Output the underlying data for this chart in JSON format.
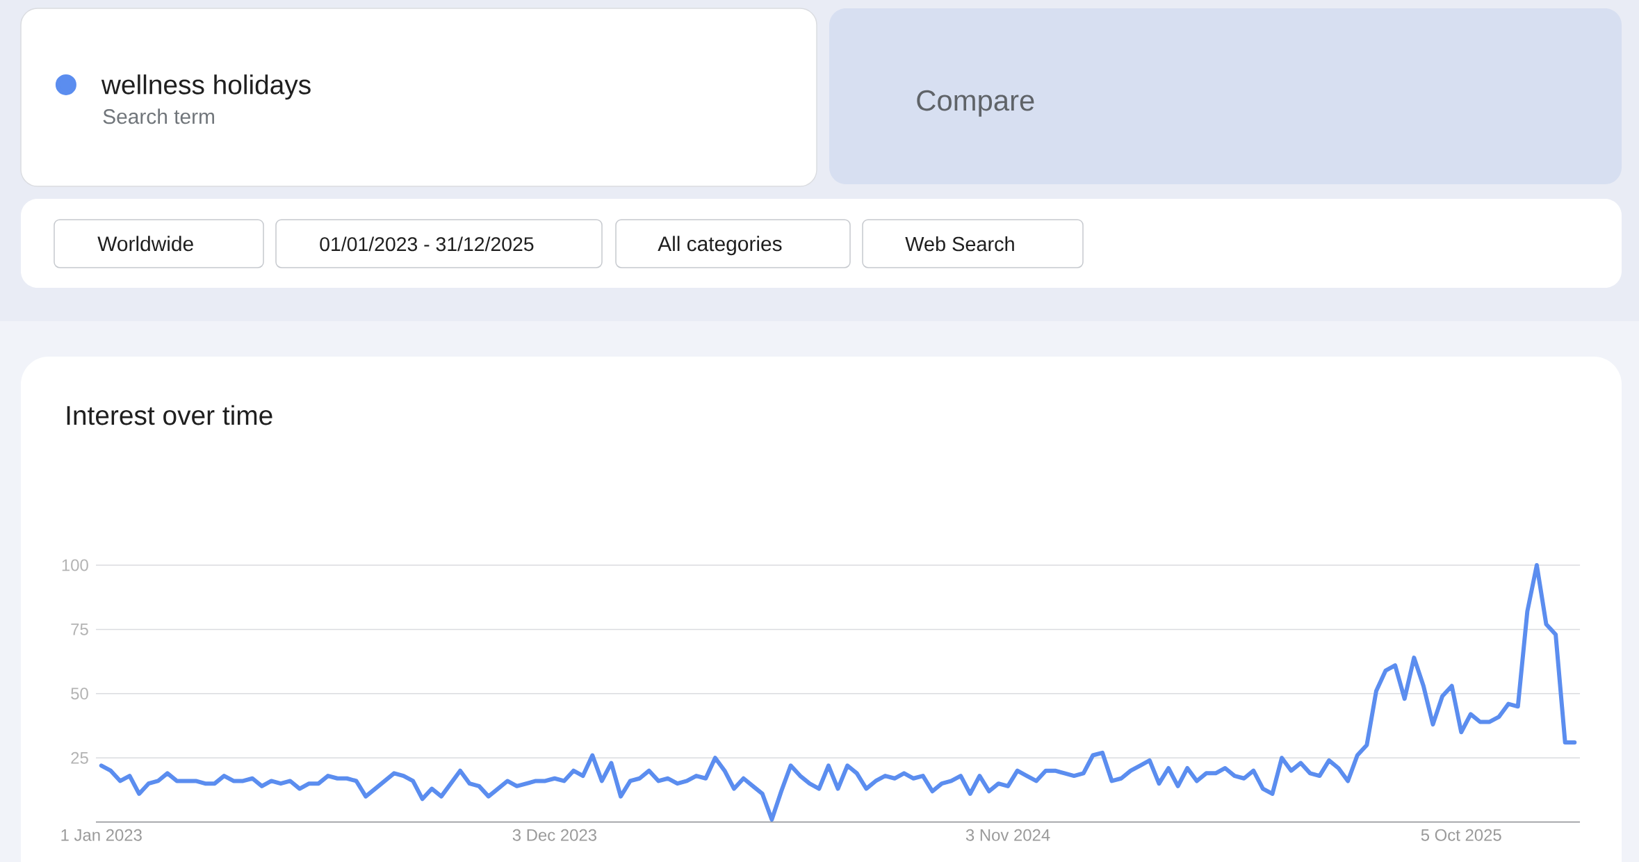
{
  "chart_data": {
    "type": "line",
    "title": "Interest over time",
    "annotations": [
      "Search term",
      "Compare",
      "Worldwide",
      "01/01/2023 - 31/12/2025",
      "All categories",
      "Web Search"
    ],
    "x": [
      "2023-01-01",
      "2023-01-08",
      "2023-01-15",
      "2023-01-22",
      "2023-01-29",
      "2023-02-05",
      "2023-02-12",
      "2023-02-19",
      "2023-02-26",
      "2023-03-05",
      "2023-03-12",
      "2023-03-19",
      "2023-03-26",
      "2023-04-02",
      "2023-04-09",
      "2023-04-16",
      "2023-04-23",
      "2023-04-30",
      "2023-05-07",
      "2023-05-14",
      "2023-05-21",
      "2023-05-28",
      "2023-06-04",
      "2023-06-11",
      "2023-06-18",
      "2023-06-25",
      "2023-07-02",
      "2023-07-09",
      "2023-07-16",
      "2023-07-23",
      "2023-07-30",
      "2023-08-06",
      "2023-08-13",
      "2023-08-20",
      "2023-08-27",
      "2023-09-03",
      "2023-09-10",
      "2023-09-17",
      "2023-09-24",
      "2023-10-01",
      "2023-10-08",
      "2023-10-15",
      "2023-10-22",
      "2023-10-29",
      "2023-11-05",
      "2023-11-12",
      "2023-11-19",
      "2023-11-26",
      "2023-12-03",
      "2023-12-10",
      "2023-12-17",
      "2023-12-24",
      "2023-12-31",
      "2024-01-07",
      "2024-01-14",
      "2024-01-21",
      "2024-01-28",
      "2024-02-04",
      "2024-02-11",
      "2024-02-18",
      "2024-02-25",
      "2024-03-03",
      "2024-03-10",
      "2024-03-17",
      "2024-03-24",
      "2024-03-31",
      "2024-04-07",
      "2024-04-14",
      "2024-04-21",
      "2024-04-28",
      "2024-05-05",
      "2024-05-12",
      "2024-05-19",
      "2024-05-26",
      "2024-06-02",
      "2024-06-09",
      "2024-06-16",
      "2024-06-23",
      "2024-06-30",
      "2024-07-07",
      "2024-07-14",
      "2024-07-21",
      "2024-07-28",
      "2024-08-04",
      "2024-08-11",
      "2024-08-18",
      "2024-08-25",
      "2024-09-01",
      "2024-09-08",
      "2024-09-15",
      "2024-09-22",
      "2024-09-29",
      "2024-10-06",
      "2024-10-13",
      "2024-10-20",
      "2024-10-27",
      "2024-11-03",
      "2024-11-10",
      "2024-11-17",
      "2024-11-24",
      "2024-12-01",
      "2024-12-08",
      "2024-12-15",
      "2024-12-22",
      "2024-12-29",
      "2025-01-05",
      "2025-01-12",
      "2025-01-19",
      "2025-01-26",
      "2025-02-02",
      "2025-02-09",
      "2025-02-16",
      "2025-02-23",
      "2025-03-02",
      "2025-03-09",
      "2025-03-16",
      "2025-03-23",
      "2025-03-30",
      "2025-04-06",
      "2025-04-13",
      "2025-04-20",
      "2025-04-27",
      "2025-05-04",
      "2025-05-11",
      "2025-05-18",
      "2025-05-25",
      "2025-06-01",
      "2025-06-08",
      "2025-06-15",
      "2025-06-22",
      "2025-06-29",
      "2025-07-06",
      "2025-07-13",
      "2025-07-20",
      "2025-07-27",
      "2025-08-03",
      "2025-08-10",
      "2025-08-17",
      "2025-08-24",
      "2025-08-31",
      "2025-09-07",
      "2025-09-14",
      "2025-09-21",
      "2025-09-28",
      "2025-10-05",
      "2025-10-12",
      "2025-10-19",
      "2025-10-26",
      "2025-11-02",
      "2025-11-09",
      "2025-11-16",
      "2025-11-23",
      "2025-11-30",
      "2025-12-07",
      "2025-12-14",
      "2025-12-21",
      "2025-12-28"
    ],
    "series": [
      {
        "name": "wellness holidays",
        "color": "#5b8def",
        "values": [
          22,
          20,
          16,
          18,
          11,
          15,
          16,
          19,
          16,
          16,
          16,
          15,
          15,
          18,
          16,
          16,
          17,
          14,
          16,
          15,
          16,
          13,
          15,
          15,
          18,
          17,
          17,
          16,
          10,
          13,
          16,
          19,
          18,
          16,
          9,
          13,
          10,
          15,
          20,
          15,
          14,
          10,
          13,
          16,
          14,
          15,
          16,
          16,
          17,
          16,
          20,
          18,
          26,
          16,
          23,
          10,
          16,
          17,
          20,
          16,
          17,
          15,
          16,
          18,
          17,
          25,
          20,
          13,
          17,
          14,
          11,
          1,
          12,
          22,
          18,
          15,
          13,
          22,
          13,
          22,
          19,
          13,
          16,
          18,
          17,
          19,
          17,
          18,
          12,
          15,
          16,
          18,
          11,
          18,
          12,
          15,
          14,
          20,
          18,
          16,
          20,
          20,
          19,
          18,
          19,
          26,
          27,
          16,
          17,
          20,
          22,
          24,
          15,
          21,
          14,
          21,
          16,
          19,
          19,
          21,
          18,
          17,
          20,
          13,
          11,
          25,
          20,
          23,
          19,
          18,
          24,
          21,
          16,
          26,
          30,
          51,
          59,
          61,
          48,
          64,
          53,
          38,
          49,
          53,
          35,
          42,
          39,
          39,
          41,
          46,
          45,
          82,
          100,
          77,
          73,
          31,
          31
        ]
      }
    ],
    "xlim": [
      "2022-12-28",
      "2026-01-01"
    ],
    "xticks": [
      {
        "value": "2023-01-01",
        "label": "1 Jan 2023"
      },
      {
        "value": "2023-12-03",
        "label": "3 Dec 2023"
      },
      {
        "value": "2024-11-03",
        "label": "3 Nov 2024"
      },
      {
        "value": "2025-10-05",
        "label": "5 Oct 2025"
      }
    ],
    "ylim": [
      0,
      100
    ],
    "yticks": [
      25,
      50,
      75,
      100
    ],
    "grid": "y",
    "legend": "top left"
  }
}
